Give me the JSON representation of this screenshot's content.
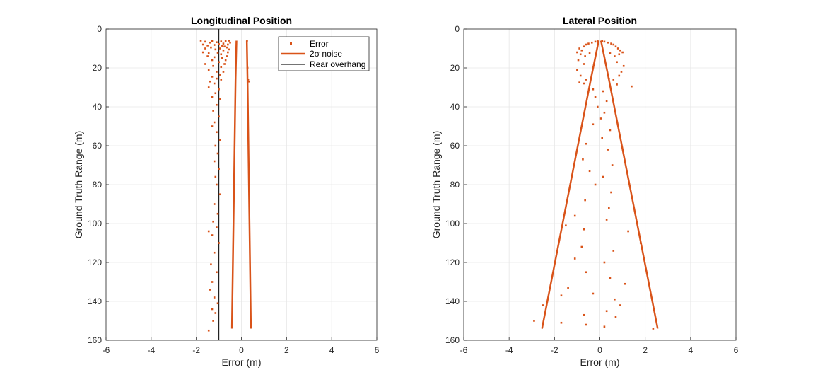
{
  "colors": {
    "series": "#d95319",
    "overhang": "#222222",
    "grid": "#e6e6e6",
    "axis": "#262626"
  },
  "chart_data": [
    {
      "type": "scatter",
      "title": "Longitudinal Position",
      "xlabel": "Error (m)",
      "ylabel": "Ground Truth Range (m)",
      "xlim": [
        -6,
        6
      ],
      "ylim": [
        0,
        160
      ],
      "y_reversed": true,
      "xticks": [
        -6,
        -4,
        -2,
        0,
        2,
        4,
        6
      ],
      "yticks": [
        0,
        20,
        40,
        60,
        80,
        100,
        120,
        140,
        160
      ],
      "grid": true,
      "legend": {
        "location": "top-right",
        "entries": [
          "Error",
          "2σ noise",
          "Rear overhang"
        ]
      },
      "rear_overhang_x": -1.0,
      "noise_bounds": {
        "y": [
          6,
          26,
          154
        ],
        "lower": [
          -0.22,
          -0.26,
          -0.42
        ],
        "upper": [
          0.24,
          0.27,
          0.42
        ]
      },
      "error_points": [
        [
          -1.8,
          6
        ],
        [
          -1.6,
          6.5
        ],
        [
          -1.4,
          7
        ],
        [
          -1.3,
          6.2
        ],
        [
          -1.1,
          6.8
        ],
        [
          -0.9,
          6.4
        ],
        [
          -0.8,
          7.5
        ],
        [
          -0.7,
          6.1
        ],
        [
          -1.7,
          8
        ],
        [
          -1.5,
          8.5
        ],
        [
          -1.2,
          8.2
        ],
        [
          -1.0,
          7.8
        ],
        [
          -0.85,
          8.6
        ],
        [
          -0.75,
          9
        ],
        [
          -1.6,
          10
        ],
        [
          -1.35,
          9.5
        ],
        [
          -1.15,
          10.5
        ],
        [
          -0.95,
          10
        ],
        [
          -0.8,
          11
        ],
        [
          -1.7,
          12
        ],
        [
          -1.45,
          12.5
        ],
        [
          -1.05,
          12.2
        ],
        [
          -0.9,
          13
        ],
        [
          -1.5,
          14
        ],
        [
          -1.2,
          14.5
        ],
        [
          -0.85,
          15
        ],
        [
          -1.3,
          16
        ],
        [
          -1.0,
          17
        ],
        [
          -1.6,
          18
        ],
        [
          -1.25,
          19
        ],
        [
          -0.9,
          19.5
        ],
        [
          -1.45,
          21
        ],
        [
          -1.1,
          22
        ],
        [
          -0.95,
          23.5
        ],
        [
          -1.3,
          24.5
        ],
        [
          -1.1,
          25.5
        ],
        [
          -0.9,
          26
        ],
        [
          -1.4,
          27
        ],
        [
          -1.2,
          28
        ],
        [
          -1.45,
          30
        ],
        [
          -1.0,
          31
        ],
        [
          -1.15,
          33
        ],
        [
          -1.3,
          35
        ],
        [
          -0.95,
          36
        ],
        [
          -1.1,
          39
        ],
        [
          -1.25,
          42
        ],
        [
          -1.0,
          45
        ],
        [
          -1.2,
          48
        ],
        [
          -1.3,
          50
        ],
        [
          -1.1,
          53
        ],
        [
          -0.95,
          57
        ],
        [
          -1.15,
          60
        ],
        [
          -1.05,
          64
        ],
        [
          -1.2,
          68
        ],
        [
          -1.0,
          72
        ],
        [
          -1.15,
          76
        ],
        [
          -1.1,
          80
        ],
        [
          -0.95,
          85
        ],
        [
          -1.2,
          90
        ],
        [
          -1.05,
          95
        ],
        [
          -1.25,
          99
        ],
        [
          -1.1,
          102
        ],
        [
          -1.45,
          104
        ],
        [
          -1.3,
          106
        ],
        [
          -1.0,
          110
        ],
        [
          -1.2,
          115
        ],
        [
          -1.35,
          121
        ],
        [
          -1.1,
          125
        ],
        [
          -1.3,
          130
        ],
        [
          -1.4,
          134
        ],
        [
          -1.2,
          138
        ],
        [
          -1.05,
          141
        ],
        [
          -1.3,
          144
        ],
        [
          -1.15,
          146
        ],
        [
          -1.25,
          150
        ],
        [
          -1.45,
          155
        ],
        [
          -0.55,
          6
        ],
        [
          -0.5,
          7
        ],
        [
          -0.6,
          8
        ],
        [
          -0.65,
          9.5
        ],
        [
          -0.55,
          10.5
        ],
        [
          -0.6,
          12
        ],
        [
          -0.65,
          14
        ],
        [
          -0.7,
          16
        ],
        [
          -0.75,
          18
        ],
        [
          -0.8,
          22
        ],
        [
          0.25,
          6
        ],
        [
          0.27,
          20
        ],
        [
          0.3,
          26
        ],
        [
          0.32,
          27
        ]
      ]
    },
    {
      "type": "scatter",
      "title": "Lateral Position",
      "xlabel": "Error (m)",
      "ylabel": "Ground Truth Range (m)",
      "xlim": [
        -6,
        6
      ],
      "ylim": [
        0,
        160
      ],
      "y_reversed": true,
      "xticks": [
        -6,
        -4,
        -2,
        0,
        2,
        4,
        6
      ],
      "yticks": [
        0,
        20,
        40,
        60,
        80,
        100,
        120,
        140,
        160
      ],
      "grid": true,
      "noise_bounds": {
        "y": [
          6,
          26,
          154
        ],
        "lower": [
          -0.05,
          -0.4,
          -2.55
        ],
        "upper": [
          0.05,
          0.4,
          2.55
        ]
      },
      "error_points": [
        [
          -0.9,
          10
        ],
        [
          -0.8,
          11
        ],
        [
          -0.7,
          9
        ],
        [
          -0.6,
          8
        ],
        [
          -0.5,
          7.5
        ],
        [
          -0.35,
          7
        ],
        [
          -0.2,
          6.5
        ],
        [
          -0.1,
          6.2
        ],
        [
          0.1,
          6.2
        ],
        [
          0.2,
          6.5
        ],
        [
          0.35,
          7
        ],
        [
          0.5,
          7.5
        ],
        [
          0.6,
          8
        ],
        [
          0.7,
          9
        ],
        [
          0.8,
          10
        ],
        [
          0.9,
          11
        ],
        [
          -1.0,
          12
        ],
        [
          -0.85,
          13
        ],
        [
          -0.65,
          14
        ],
        [
          -0.45,
          12.5
        ],
        [
          0.45,
          12.5
        ],
        [
          0.65,
          14
        ],
        [
          0.85,
          13
        ],
        [
          1.0,
          12
        ],
        [
          -0.95,
          16
        ],
        [
          -0.7,
          18
        ],
        [
          0.75,
          17
        ],
        [
          1.05,
          19
        ],
        [
          -1.0,
          21
        ],
        [
          0.95,
          22
        ],
        [
          -0.85,
          24
        ],
        [
          -0.6,
          26
        ],
        [
          -0.4,
          25.5
        ],
        [
          0.4,
          25.5
        ],
        [
          0.6,
          26
        ],
        [
          0.85,
          24
        ],
        [
          -0.9,
          27.5
        ],
        [
          -0.7,
          28
        ],
        [
          0.75,
          28.5
        ],
        [
          1.4,
          29.5
        ],
        [
          -0.3,
          31
        ],
        [
          0.15,
          32
        ],
        [
          -0.2,
          35
        ],
        [
          0.3,
          37
        ],
        [
          -0.1,
          40
        ],
        [
          0.2,
          43
        ],
        [
          0.05,
          46
        ],
        [
          -0.3,
          49
        ],
        [
          0.45,
          52
        ],
        [
          0.1,
          56
        ],
        [
          -0.6,
          59
        ],
        [
          0.35,
          62
        ],
        [
          -0.75,
          67
        ],
        [
          0.55,
          70
        ],
        [
          -0.45,
          73
        ],
        [
          0.15,
          76
        ],
        [
          -0.2,
          80
        ],
        [
          0.5,
          84
        ],
        [
          -0.65,
          88
        ],
        [
          0.4,
          92
        ],
        [
          -1.1,
          96
        ],
        [
          0.3,
          98
        ],
        [
          -1.5,
          101
        ],
        [
          -0.7,
          103
        ],
        [
          1.25,
          104
        ],
        [
          1.8,
          110
        ],
        [
          -0.8,
          112
        ],
        [
          0.6,
          114
        ],
        [
          -1.1,
          118
        ],
        [
          0.2,
          120
        ],
        [
          -0.6,
          125
        ],
        [
          0.45,
          128
        ],
        [
          1.1,
          131
        ],
        [
          -1.4,
          133
        ],
        [
          -0.3,
          136
        ],
        [
          0.65,
          139
        ],
        [
          -1.7,
          137
        ],
        [
          0.9,
          142
        ],
        [
          0.3,
          145
        ],
        [
          -0.7,
          147
        ],
        [
          -2.5,
          142
        ],
        [
          -2.9,
          150
        ],
        [
          -1.7,
          151
        ],
        [
          -0.6,
          152
        ],
        [
          0.2,
          153
        ],
        [
          0.7,
          148
        ],
        [
          2.35,
          154
        ]
      ]
    }
  ]
}
